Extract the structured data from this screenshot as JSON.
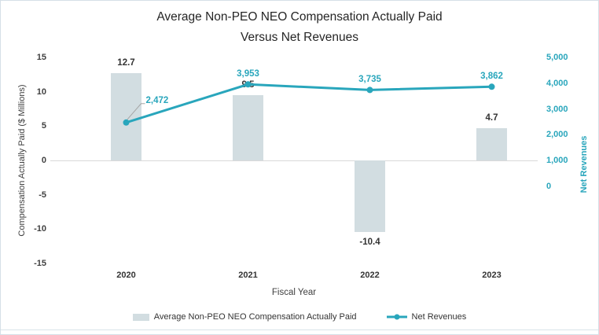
{
  "chart_data": {
    "type": "bar+line",
    "title": "Average Non-PEO NEO Compensation Actually Paid Versus Net Revenues",
    "title_lines": [
      "Average Non-PEO NEO Compensation Actually Paid",
      "Versus Net Revenues"
    ],
    "categories": [
      "2020",
      "2021",
      "2022",
      "2023"
    ],
    "series": [
      {
        "name": "Average Non-PEO NEO Compensation Actually Paid",
        "type": "bar",
        "axis": "left",
        "values": [
          12.7,
          9.5,
          -10.4,
          4.7
        ],
        "color": "#D2DDE1"
      },
      {
        "name": "Net Revenues",
        "type": "line",
        "axis": "right",
        "values": [
          2472,
          3953,
          3735,
          3862
        ],
        "color": "#29A6BC"
      }
    ],
    "xlabel": "Fiscal Year",
    "left_axis": {
      "label": "Compensation Actually Paid ($ Millions)",
      "ticks": [
        15,
        10,
        5,
        0,
        -5,
        -10,
        -15
      ],
      "min": -15,
      "max": 15
    },
    "right_axis": {
      "label": "Net Revenues",
      "ticks": [
        5000,
        4000,
        3000,
        2000,
        1000,
        0
      ]
    },
    "legend_position": "bottom",
    "grid": "zero-line-only"
  },
  "colors": {
    "accent_teal": "#29A6BC",
    "bar_fill": "#D2DDE1",
    "gridline": "#D9D9D9",
    "leader_line": "#A6A6A6",
    "card_border": "#D5DFE7",
    "text_primary": "#262626",
    "text_secondary": "#404040"
  }
}
